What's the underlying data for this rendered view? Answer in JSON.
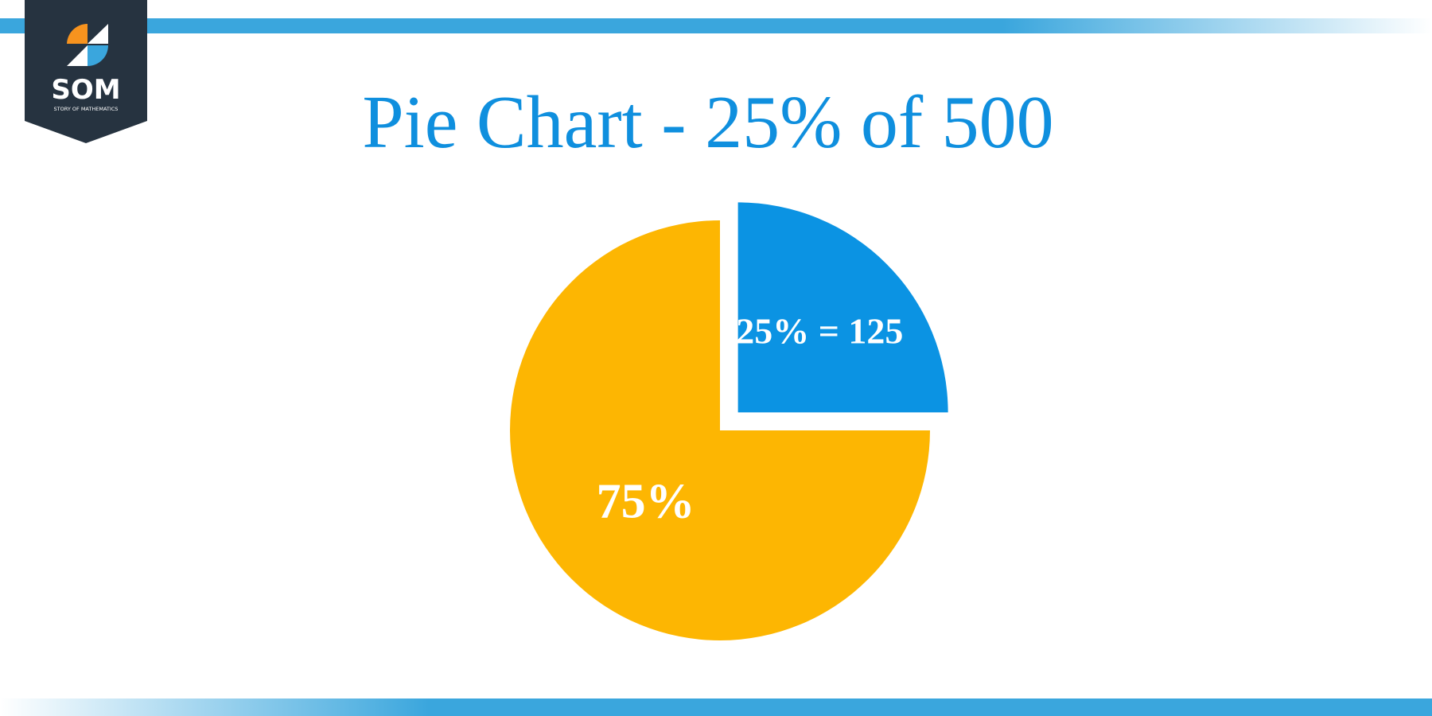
{
  "logo": {
    "name": "SOM",
    "tagline": "STORY OF MATHEMATICS"
  },
  "chart_data": {
    "type": "pie",
    "title": "Pie Chart - 25% of 500",
    "values": [
      25,
      75
    ],
    "value_labels": [
      "25% = 125",
      "75%"
    ],
    "colors": [
      "#0b93e3",
      "#fdb602"
    ]
  }
}
